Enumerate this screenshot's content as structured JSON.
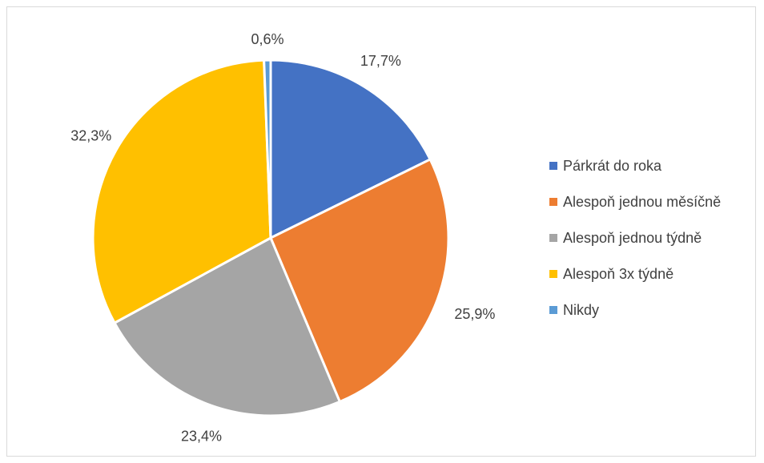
{
  "chart_data": {
    "type": "pie",
    "title": "",
    "categories": [
      "Párkrát do roka",
      "Alespoň jednou měsíčně",
      "Alespoň jednou týdně",
      "Alespoň 3x týdně",
      "Nikdy"
    ],
    "values": [
      17.7,
      25.9,
      23.4,
      32.3,
      0.6
    ],
    "data_labels": [
      "17,7%",
      "25,9%",
      "23,4%",
      "32,3%",
      "0,6%"
    ],
    "colors": [
      "#4472C4",
      "#ED7D31",
      "#A5A5A5",
      "#FFC000",
      "#5B9BD5"
    ],
    "start_angle_deg": 0,
    "direction": "clockwise",
    "legend_placement": "right"
  }
}
